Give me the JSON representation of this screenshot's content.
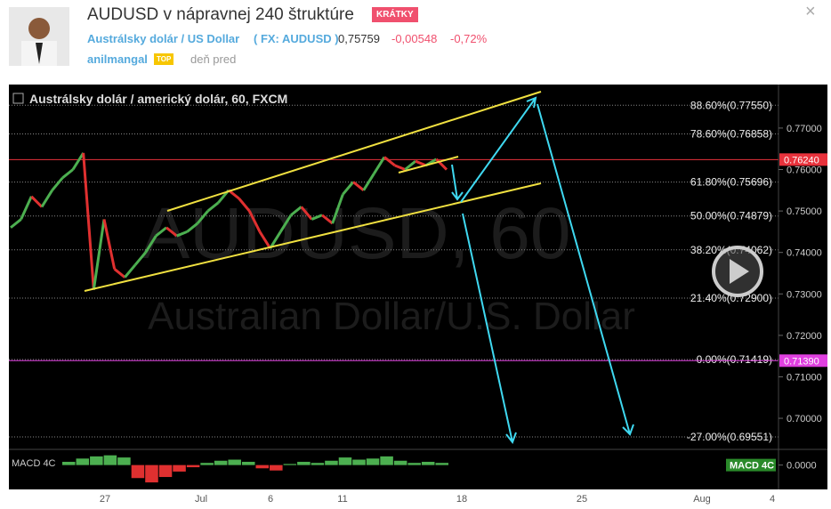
{
  "header": {
    "title": "AUDUSD v nápravnej 240 štruktúre",
    "badge": "KRÁTKY",
    "symbol_name": "Austrálsky dolár / US Dollar",
    "symbol_code": "( FX: AUDUSD )",
    "price": "0,75759",
    "change": "-0,00548",
    "change_pct": "-0,72%",
    "author": "anilmangal",
    "author_badge": "TOP",
    "time": "deň pred",
    "close": "×"
  },
  "chart": {
    "legend": "Austrálsky dolár / americký dolár, 60, FXCM",
    "watermark": "AUDUSD, 60",
    "watermark_sub": "Australian Dollar/U.S. Dollar",
    "ylim": [
      0.6925,
      0.7805
    ],
    "yticks": [
      {
        "value": 0.77,
        "label": "0.77000"
      },
      {
        "value": 0.76,
        "label": "0.76000"
      },
      {
        "value": 0.75,
        "label": "0.75000"
      },
      {
        "value": 0.74,
        "label": "0.74000"
      },
      {
        "value": 0.73,
        "label": "0.73000"
      },
      {
        "value": 0.72,
        "label": "0.72000"
      },
      {
        "value": 0.71,
        "label": "0.71000"
      },
      {
        "value": 0.7,
        "label": "0.70000"
      }
    ],
    "fib_levels": [
      {
        "value": 0.7755,
        "label": "88.60%(0.77550)"
      },
      {
        "value": 0.76858,
        "label": "78.60%(0.76858)"
      },
      {
        "value": 0.75696,
        "label": "61.80%(0.75696)"
      },
      {
        "value": 0.74879,
        "label": "50.00%(0.74879)"
      },
      {
        "value": 0.74062,
        "label": "38.20%(0.74062)"
      },
      {
        "value": 0.729,
        "label": "21.40%(0.72900)"
      },
      {
        "value": 0.71419,
        "label": "0.00%(0.71419)"
      },
      {
        "value": 0.69551,
        "label": "-27.00%(0.69551)"
      }
    ],
    "price_markers": [
      {
        "value": 0.7624,
        "label": "0.76240",
        "color": "#e8323c"
      },
      {
        "value": 0.7139,
        "label": "0.71390",
        "color": "#e040e0"
      }
    ],
    "xticks": [
      "27",
      "Jul",
      "6",
      "11",
      "18",
      "25",
      "Aug",
      "4"
    ],
    "closes": [
      0.746,
      0.748,
      0.7535,
      0.751,
      0.755,
      0.758,
      0.76,
      0.764,
      0.731,
      0.748,
      0.736,
      0.734,
      0.737,
      0.74,
      0.744,
      0.746,
      0.744,
      0.745,
      0.747,
      0.75,
      0.752,
      0.755,
      0.753,
      0.75,
      0.745,
      0.741,
      0.745,
      0.749,
      0.751,
      0.748,
      0.749,
      0.747,
      0.754,
      0.757,
      0.755,
      0.759,
      0.763,
      0.761,
      0.76,
      0.762,
      0.761,
      0.7625,
      0.76
    ],
    "up_color": "#4caf50",
    "down_color": "#e03030",
    "macd_label": "MACD 4C",
    "macd_ylim": [
      -0.002,
      0.0012
    ],
    "macd_ticks": [
      {
        "value": 0,
        "label": "0.0000"
      }
    ],
    "macd": [
      0.0003,
      0.0006,
      0.0008,
      0.0009,
      0.0007,
      -0.0012,
      -0.0016,
      -0.0011,
      -0.0006,
      -0.0002,
      0.0002,
      0.0004,
      0.0005,
      0.0003,
      -0.0003,
      -0.0005,
      0.0001,
      0.0003,
      0.0002,
      0.0004,
      0.0007,
      0.0005,
      0.0006,
      0.0008,
      0.0004,
      0.0002,
      0.0003,
      0.0002
    ]
  }
}
